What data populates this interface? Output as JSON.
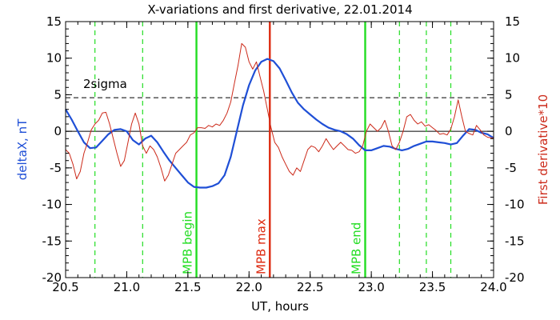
{
  "chart_data": {
    "type": "line",
    "title": "X-variations and first derivative, 22.01.2014",
    "xlabel": "UT, hours",
    "ylabel_left": "deltaX, nT",
    "ylabel_right": "First derivative*10",
    "xlim": [
      20.5,
      24.0
    ],
    "ylim": [
      -20,
      15
    ],
    "x_ticks": [
      "20.5",
      "21.0",
      "21.5",
      "22.0",
      "22.5",
      "23.0",
      "23.5",
      "24.0"
    ],
    "x_tick_values": [
      20.5,
      21.0,
      21.5,
      22.0,
      22.5,
      23.0,
      23.5,
      24.0
    ],
    "y_ticks": [
      "15",
      "10",
      "5",
      "0",
      "-5",
      "-10",
      "-15",
      "-20"
    ],
    "y_tick_values": [
      15,
      10,
      5,
      0,
      -5,
      -10,
      -15,
      -20
    ],
    "colors": {
      "deltaX": "#1f4fd6",
      "derivative": "#cc2a1a",
      "mpb_edges": "#22dd22",
      "mpb_max": "#dd2a10",
      "zero_line": "#000000",
      "sigma_line": "#000000"
    },
    "sigma": {
      "label": "2sigma",
      "value": 4.6
    },
    "markers": [
      {
        "label": "MPB begin",
        "x": 21.57,
        "style": "solid",
        "color": "#22dd22"
      },
      {
        "label": "MPB max",
        "x": 22.17,
        "style": "solid",
        "color": "#dd2a10"
      },
      {
        "label": "MPB end",
        "x": 22.95,
        "style": "solid",
        "color": "#22dd22"
      }
    ],
    "dashed_markers": [
      20.74,
      21.13,
      23.23,
      23.45,
      23.65
    ],
    "series": [
      {
        "name": "deltaX, nT",
        "color": "#1f4fd6",
        "x": [
          20.5,
          20.55,
          20.6,
          20.65,
          20.7,
          20.75,
          20.8,
          20.85,
          20.9,
          20.95,
          21.0,
          21.05,
          21.1,
          21.15,
          21.2,
          21.25,
          21.3,
          21.35,
          21.4,
          21.45,
          21.5,
          21.55,
          21.6,
          21.65,
          21.7,
          21.75,
          21.8,
          21.85,
          21.9,
          21.95,
          22.0,
          22.05,
          22.1,
          22.15,
          22.2,
          22.25,
          22.3,
          22.35,
          22.4,
          22.45,
          22.5,
          22.55,
          22.6,
          22.65,
          22.7,
          22.75,
          22.8,
          22.85,
          22.9,
          22.95,
          23.0,
          23.05,
          23.1,
          23.15,
          23.2,
          23.25,
          23.3,
          23.35,
          23.4,
          23.45,
          23.5,
          23.55,
          23.6,
          23.65,
          23.7,
          23.75,
          23.8,
          23.85,
          23.9,
          23.95,
          24.0
        ],
        "y": [
          3.0,
          1.6,
          0.0,
          -1.5,
          -2.3,
          -2.2,
          -1.3,
          -0.4,
          0.2,
          0.3,
          0.0,
          -1.2,
          -1.8,
          -1.0,
          -0.6,
          -1.5,
          -2.8,
          -4.0,
          -5.0,
          -6.0,
          -7.0,
          -7.6,
          -7.7,
          -7.7,
          -7.5,
          -7.1,
          -6.0,
          -3.5,
          0.0,
          3.5,
          6.3,
          8.3,
          9.5,
          9.9,
          9.6,
          8.6,
          7.0,
          5.3,
          3.9,
          3.0,
          2.3,
          1.6,
          1.0,
          0.5,
          0.2,
          0.0,
          -0.4,
          -1.0,
          -1.9,
          -2.6,
          -2.6,
          -2.3,
          -2.0,
          -2.1,
          -2.4,
          -2.6,
          -2.4,
          -2.0,
          -1.7,
          -1.4,
          -1.4,
          -1.5,
          -1.6,
          -1.8,
          -1.6,
          -0.6,
          0.3,
          0.2,
          -0.2,
          -0.4,
          -0.9
        ]
      },
      {
        "name": "First derivative*10",
        "color": "#cc2a1a",
        "x": [
          20.5,
          20.53,
          20.56,
          20.59,
          20.62,
          20.65,
          20.68,
          20.71,
          20.74,
          20.77,
          20.8,
          20.83,
          20.86,
          20.89,
          20.92,
          20.95,
          20.98,
          21.01,
          21.04,
          21.07,
          21.1,
          21.13,
          21.16,
          21.19,
          21.22,
          21.25,
          21.28,
          21.31,
          21.34,
          21.37,
          21.4,
          21.43,
          21.46,
          21.49,
          21.52,
          21.55,
          21.58,
          21.61,
          21.64,
          21.67,
          21.7,
          21.73,
          21.76,
          21.79,
          21.82,
          21.85,
          21.88,
          21.91,
          21.94,
          21.97,
          22.0,
          22.03,
          22.06,
          22.09,
          22.12,
          22.15,
          22.18,
          22.21,
          22.24,
          22.27,
          22.3,
          22.33,
          22.36,
          22.39,
          22.42,
          22.45,
          22.48,
          22.51,
          22.54,
          22.57,
          22.6,
          22.63,
          22.66,
          22.69,
          22.72,
          22.75,
          22.78,
          22.81,
          22.84,
          22.87,
          22.9,
          22.93,
          22.96,
          22.99,
          23.02,
          23.05,
          23.08,
          23.11,
          23.14,
          23.17,
          23.2,
          23.23,
          23.26,
          23.29,
          23.32,
          23.35,
          23.38,
          23.41,
          23.44,
          23.47,
          23.5,
          23.53,
          23.56,
          23.59,
          23.62,
          23.65,
          23.68,
          23.71,
          23.74,
          23.77,
          23.8,
          23.83,
          23.86,
          23.89,
          23.92,
          23.95,
          23.98,
          24.0
        ],
        "y": [
          -2.5,
          -3.0,
          -4.5,
          -6.5,
          -5.5,
          -3.0,
          -1.5,
          0.2,
          1.0,
          1.5,
          2.5,
          2.6,
          1.0,
          -1.0,
          -3.0,
          -4.8,
          -4.0,
          -1.5,
          1.0,
          2.5,
          1.0,
          -2.0,
          -3.0,
          -2.0,
          -2.5,
          -3.5,
          -5.0,
          -6.8,
          -6.0,
          -4.5,
          -3.0,
          -2.5,
          -2.0,
          -1.5,
          -0.5,
          -0.2,
          0.5,
          0.5,
          0.4,
          0.8,
          0.6,
          1.0,
          0.8,
          1.5,
          2.5,
          4.0,
          6.5,
          9.0,
          12.0,
          11.5,
          9.5,
          8.5,
          9.5,
          7.5,
          5.5,
          3.0,
          0.5,
          -1.5,
          -2.2,
          -3.5,
          -4.5,
          -5.5,
          -6.0,
          -5.0,
          -5.5,
          -4.0,
          -2.5,
          -2.0,
          -2.2,
          -2.8,
          -2.0,
          -1.0,
          -1.8,
          -2.5,
          -2.0,
          -1.5,
          -2.0,
          -2.5,
          -2.6,
          -3.0,
          -2.8,
          -2.0,
          0.0,
          1.0,
          0.5,
          0.0,
          0.5,
          1.5,
          0.0,
          -2.0,
          -2.5,
          -1.5,
          0.0,
          2.0,
          2.3,
          1.5,
          1.0,
          1.3,
          0.7,
          0.9,
          0.5,
          0.1,
          -0.4,
          -0.3,
          -0.5,
          0.3,
          2.0,
          4.3,
          2.0,
          0.0,
          -0.3,
          -0.5,
          0.8,
          0.2,
          -0.5,
          -0.8,
          -0.9,
          -0.9
        ]
      }
    ],
    "grid": false,
    "legend": "none"
  }
}
